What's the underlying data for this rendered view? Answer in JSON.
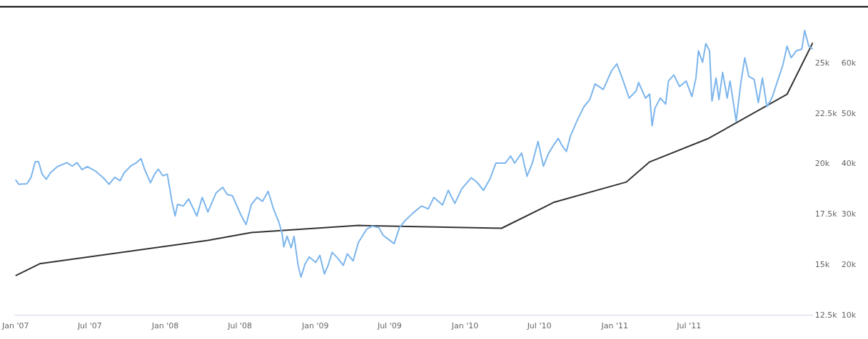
{
  "chart_data": {
    "type": "line",
    "xlim": [
      "2006-12-29",
      "2012-04-28"
    ],
    "xticks": [
      {
        "value": "2007-01-01",
        "label": "Jan '07"
      },
      {
        "value": "2007-07-01",
        "label": "Jul '07"
      },
      {
        "value": "2008-01-01",
        "label": "Jan '08"
      },
      {
        "value": "2008-07-01",
        "label": "Jul '08"
      },
      {
        "value": "2009-01-01",
        "label": "Jan '09"
      },
      {
        "value": "2009-07-01",
        "label": "Jul '09"
      },
      {
        "value": "2010-01-01",
        "label": "Jan '10"
      },
      {
        "value": "2010-07-01",
        "label": "Jul '10"
      },
      {
        "value": "2011-01-01",
        "label": "Jan '11"
      },
      {
        "value": "2011-07-01",
        "label": "Jul '11"
      }
    ],
    "ylim": [
      12500,
      27800
    ],
    "yticks": [
      {
        "value": 12500,
        "label": "12.5k"
      },
      {
        "value": 15000,
        "label": "15k"
      },
      {
        "value": 17500,
        "label": "17.5k"
      },
      {
        "value": 20000,
        "label": "20k"
      },
      {
        "value": 22500,
        "label": "22.5k"
      },
      {
        "value": 25000,
        "label": "25k"
      }
    ],
    "y2lim": [
      10000,
      71200
    ],
    "y2ticks": [
      {
        "value": 10000,
        "label": "10k"
      },
      {
        "value": 20000,
        "label": "20k"
      },
      {
        "value": 30000,
        "label": "30k"
      },
      {
        "value": 40000,
        "label": "40k"
      },
      {
        "value": 50000,
        "label": "50k"
      },
      {
        "value": 60000,
        "label": "60k"
      }
    ],
    "grid": false,
    "legend": false,
    "marker": "none",
    "line_style": "solid",
    "series": [
      {
        "color": "#7cb5ec",
        "axis": "y2",
        "x": [
          "2007-01-01",
          "2007-01-09",
          "2007-01-29",
          "2007-02-08",
          "2007-02-18",
          "2007-02-26",
          "2007-03-07",
          "2007-03-17",
          "2007-03-27",
          "2007-04-13",
          "2007-05-06",
          "2007-05-19",
          "2007-05-31",
          "2007-06-12",
          "2007-06-25",
          "2007-07-15",
          "2007-08-04",
          "2007-08-17",
          "2007-08-31",
          "2007-09-13",
          "2007-09-23",
          "2007-10-10",
          "2007-10-23",
          "2007-11-03",
          "2007-11-12",
          "2007-11-26",
          "2007-12-06",
          "2007-12-15",
          "2007-12-26",
          "2008-01-06",
          "2008-01-18",
          "2008-01-25",
          "2008-01-31",
          "2008-02-14",
          "2008-02-27",
          "2008-03-18",
          "2008-03-31",
          "2008-04-14",
          "2008-05-04",
          "2008-05-20",
          "2008-05-31",
          "2008-06-13",
          "2008-07-03",
          "2008-07-16",
          "2008-07-29",
          "2008-08-12",
          "2008-08-25",
          "2008-09-08",
          "2008-09-21",
          "2008-10-04",
          "2008-10-12",
          "2008-10-16",
          "2008-10-24",
          "2008-11-03",
          "2008-11-10",
          "2008-11-20",
          "2008-11-27",
          "2008-12-07",
          "2008-12-17",
          "2009-01-02",
          "2009-01-12",
          "2009-01-23",
          "2009-02-01",
          "2009-02-11",
          "2009-02-25",
          "2009-03-10",
          "2009-03-20",
          "2009-04-03",
          "2009-04-16",
          "2009-05-06",
          "2009-05-19",
          "2009-06-05",
          "2009-06-15",
          "2009-06-28",
          "2009-07-12",
          "2009-07-25",
          "2009-08-08",
          "2009-08-27",
          "2009-09-17",
          "2009-10-03",
          "2009-10-17",
          "2009-11-07",
          "2009-11-21",
          "2009-12-07",
          "2009-12-24",
          "2010-01-16",
          "2010-01-29",
          "2010-02-15",
          "2010-03-03",
          "2010-03-17",
          "2010-04-09",
          "2010-04-22",
          "2010-05-02",
          "2010-05-19",
          "2010-06-01",
          "2010-06-14",
          "2010-06-28",
          "2010-07-11",
          "2010-07-24",
          "2010-08-06",
          "2010-08-16",
          "2010-08-26",
          "2010-09-05",
          "2010-09-15",
          "2010-10-02",
          "2010-10-18",
          "2010-11-01",
          "2010-11-14",
          "2010-12-04",
          "2010-12-24",
          "2011-01-06",
          "2011-01-19",
          "2011-02-05",
          "2011-02-22",
          "2011-02-28",
          "2011-03-17",
          "2011-03-27",
          "2011-04-02",
          "2011-04-09",
          "2011-04-22",
          "2011-05-05",
          "2011-05-12",
          "2011-05-25",
          "2011-06-08",
          "2011-06-24",
          "2011-07-08",
          "2011-07-18",
          "2011-07-24",
          "2011-08-03",
          "2011-08-11",
          "2011-08-20",
          "2011-08-26",
          "2011-09-05",
          "2011-09-12",
          "2011-09-21",
          "2011-10-02",
          "2011-10-09",
          "2011-10-15",
          "2011-10-24",
          "2011-11-04",
          "2011-11-14",
          "2011-11-24",
          "2011-12-07",
          "2011-12-17",
          "2011-12-27",
          "2012-01-07",
          "2012-01-19",
          "2012-02-02",
          "2012-02-15",
          "2012-02-25",
          "2012-03-06",
          "2012-03-19",
          "2012-04-01",
          "2012-04-08",
          "2012-04-18",
          "2012-04-28"
        ],
        "values": [
          36900,
          36000,
          36100,
          37400,
          40500,
          40500,
          38000,
          37000,
          38300,
          39500,
          40300,
          39600,
          40300,
          38900,
          39500,
          38600,
          37200,
          36000,
          37400,
          36700,
          38300,
          39700,
          40300,
          41100,
          38900,
          36300,
          38000,
          39000,
          37700,
          38000,
          32300,
          29700,
          32000,
          31700,
          33100,
          29700,
          33400,
          30500,
          34300,
          35400,
          34000,
          33700,
          30000,
          28000,
          32000,
          33400,
          32600,
          34600,
          31100,
          28500,
          26200,
          23600,
          25700,
          23400,
          25700,
          19900,
          17600,
          20200,
          21600,
          20500,
          21900,
          18200,
          19900,
          22500,
          21300,
          19900,
          22200,
          20800,
          24500,
          27100,
          27700,
          27400,
          25900,
          25100,
          24200,
          27400,
          28800,
          30300,
          31700,
          31100,
          33400,
          31900,
          34800,
          32200,
          35100,
          37300,
          36500,
          34800,
          37100,
          40200,
          40200,
          41600,
          40200,
          42200,
          37600,
          40200,
          44500,
          39600,
          42200,
          43900,
          45100,
          43600,
          42500,
          45600,
          48800,
          51400,
          52800,
          55900,
          54800,
          58500,
          59900,
          57100,
          53100,
          54500,
          56200,
          53100,
          53900,
          47600,
          51100,
          53100,
          51900,
          56500,
          57700,
          55400,
          56500,
          53400,
          57100,
          62500,
          60200,
          63900,
          62500,
          52500,
          57100,
          52800,
          58200,
          53100,
          56500,
          53400,
          48500,
          55900,
          61100,
          57400,
          56800,
          52200,
          57100,
          51400,
          53100,
          56500,
          59700,
          63400,
          61100,
          62500,
          62800,
          66500,
          63400,
          62800
        ]
      },
      {
        "color": "#333333",
        "axis": "y",
        "x": [
          "2007-01-01",
          "2007-03-01",
          "2008-04-14",
          "2008-07-29",
          "2009-04-16",
          "2010-03-31",
          "2010-08-06",
          "2011-01-29",
          "2011-03-27",
          "2011-08-18",
          "2012-02-25",
          "2012-04-28"
        ],
        "values": [
          14470,
          15060,
          16220,
          16610,
          16960,
          16820,
          18110,
          19110,
          20110,
          21280,
          23460,
          26030
        ]
      }
    ]
  }
}
